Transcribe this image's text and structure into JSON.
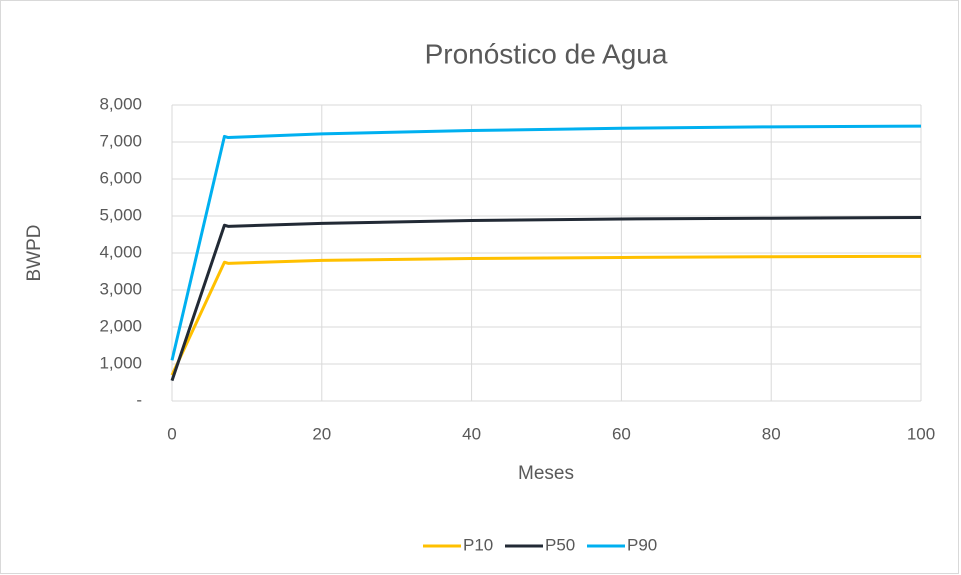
{
  "chart_data": {
    "type": "line",
    "title": "Pronóstico de Agua",
    "x_label": "Meses",
    "y_label": "BWPD",
    "x": [
      0,
      7,
      7.5,
      20,
      40,
      60,
      80,
      100
    ],
    "series": [
      {
        "name": "P10",
        "color": "#ffc000",
        "values": [
          700,
          3750,
          3720,
          3800,
          3850,
          3880,
          3900,
          3910
        ]
      },
      {
        "name": "P50",
        "color": "#222a35",
        "values": [
          550,
          4750,
          4720,
          4800,
          4880,
          4920,
          4940,
          4960
        ]
      },
      {
        "name": "P90",
        "color": "#00b0f0",
        "values": [
          1100,
          7150,
          7120,
          7220,
          7310,
          7370,
          7410,
          7430
        ]
      }
    ],
    "xlim": [
      0,
      100
    ],
    "xticks": [
      0,
      20,
      40,
      60,
      80,
      100
    ],
    "ylim": [
      0,
      8000
    ],
    "yticks": [
      {
        "value": 0,
        "label": "-"
      },
      {
        "value": 1000,
        "label": "1,000"
      },
      {
        "value": 2000,
        "label": "2,000"
      },
      {
        "value": 3000,
        "label": "3,000"
      },
      {
        "value": 4000,
        "label": "4,000"
      },
      {
        "value": 5000,
        "label": "5,000"
      },
      {
        "value": 6000,
        "label": "6,000"
      },
      {
        "value": 7000,
        "label": "7,000"
      },
      {
        "value": 8000,
        "label": "8,000"
      }
    ],
    "grid": true,
    "legend": "bottom"
  }
}
